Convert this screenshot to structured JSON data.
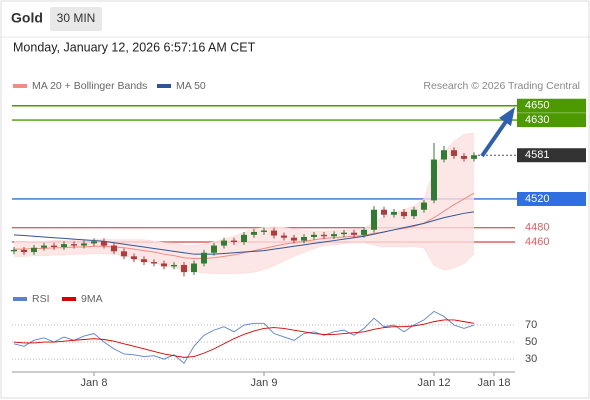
{
  "header": {
    "symbol": "Gold",
    "interval": "30 MIN",
    "datetime": "Monday, January 12, 2026 6:57:16 AM CET",
    "source": "Research © 2026 Trading Central"
  },
  "chart_data": [
    {
      "type": "candlestick",
      "categories": [
        null,
        null,
        null,
        null,
        null,
        null,
        null,
        null,
        "Jan 8",
        null,
        null,
        null,
        null,
        null,
        null,
        null,
        null,
        null,
        null,
        null,
        null,
        null,
        null,
        null,
        null,
        "Jan 9",
        null,
        null,
        null,
        null,
        null,
        null,
        null,
        null,
        null,
        null,
        null,
        null,
        null,
        null,
        null,
        null,
        "Jan 12",
        null,
        null,
        null,
        null,
        null,
        "Jan 18",
        null
      ],
      "open": [
        4447,
        4449,
        4446,
        4452,
        4455,
        4453,
        4457,
        4455,
        4458,
        4461,
        4455,
        4447,
        4440,
        4436,
        4432,
        4430,
        4426,
        4428,
        4418,
        4430,
        4445,
        4455,
        4462,
        4460,
        4470,
        4474,
        4476,
        4469,
        4466,
        4462,
        4467,
        4470,
        4468,
        4471,
        4473,
        4470,
        4477,
        4505,
        4498,
        4502,
        4496,
        4505,
        4518,
        4575,
        4588,
        4580,
        4576,
        null,
        null,
        null
      ],
      "high": [
        4453,
        4453,
        4456,
        4459,
        4459,
        4461,
        4461,
        4462,
        4465,
        4465,
        4459,
        4451,
        4444,
        4440,
        4436,
        4434,
        4432,
        4432,
        4434,
        4449,
        4459,
        4466,
        4466,
        4474,
        4478,
        4480,
        4480,
        4473,
        4470,
        4471,
        4474,
        4474,
        4475,
        4477,
        4477,
        4481,
        4510,
        4509,
        4506,
        4506,
        4509,
        4519,
        4598,
        4594,
        4592,
        4584,
        4585,
        null,
        null,
        null
      ],
      "low": [
        4443,
        4442,
        4442,
        4448,
        4449,
        4449,
        4451,
        4451,
        4454,
        4451,
        4443,
        4436,
        4432,
        4428,
        4426,
        4422,
        4422,
        4412,
        4414,
        4426,
        4441,
        4451,
        4456,
        4456,
        4466,
        4470,
        4465,
        4462,
        4458,
        4458,
        4463,
        4464,
        4464,
        4467,
        4466,
        4466,
        4473,
        4494,
        4494,
        4492,
        4492,
        4501,
        4514,
        4571,
        4576,
        4572,
        4572,
        null,
        null,
        null
      ],
      "close": [
        4449,
        4446,
        4452,
        4455,
        4453,
        4457,
        4455,
        4458,
        4461,
        4455,
        4447,
        4440,
        4436,
        4432,
        4430,
        4426,
        4428,
        4418,
        4430,
        4445,
        4455,
        4462,
        4460,
        4470,
        4474,
        4476,
        4469,
        4466,
        4462,
        4467,
        4470,
        4468,
        4471,
        4473,
        4470,
        4477,
        4505,
        4498,
        4502,
        4496,
        4505,
        4515,
        4575,
        4588,
        4580,
        4576,
        4581,
        null,
        null,
        null
      ],
      "up_color": "#2f7d32",
      "down_color": "#b23a3a",
      "series": [
        {
          "name": "MA 20 + Bollinger Bands",
          "color": "#f28b82",
          "band_color": "#fde0e0",
          "values": [
            4450,
            4450,
            4451,
            4451,
            4452,
            4452,
            4453,
            4453,
            4454,
            4454,
            4453,
            4452,
            4450,
            4448,
            4446,
            4443,
            4441,
            4438,
            4437,
            4437,
            4438,
            4440,
            4442,
            4445,
            4448,
            4451,
            4454,
            4457,
            4459,
            4461,
            4463,
            4465,
            4466,
            4467,
            4468,
            4469,
            4472,
            4474,
            4477,
            4479,
            4482,
            4486,
            4494,
            4503,
            4512,
            4520,
            4528,
            null,
            null,
            null
          ],
          "upper": [
            4460,
            4460,
            4461,
            4461,
            4462,
            4462,
            4463,
            4463,
            4464,
            4464,
            4463,
            4463,
            4463,
            4463,
            4461,
            4459,
            4458,
            4455,
            4455,
            4457,
            4460,
            4464,
            4468,
            4473,
            4478,
            4480,
            4481,
            4480,
            4478,
            4476,
            4475,
            4475,
            4476,
            4476,
            4477,
            4479,
            4488,
            4495,
            4500,
            4505,
            4510,
            4520,
            4560,
            4585,
            4600,
            4610,
            4612,
            null,
            null,
            null
          ],
          "lower": [
            4440,
            4440,
            4441,
            4441,
            4442,
            4442,
            4443,
            4443,
            4444,
            4444,
            4443,
            4441,
            4437,
            4433,
            4431,
            4427,
            4424,
            4421,
            4419,
            4417,
            4416,
            4416,
            4416,
            4417,
            4418,
            4422,
            4427,
            4434,
            4440,
            4446,
            4451,
            4455,
            4456,
            4458,
            4459,
            4459,
            4456,
            4453,
            4454,
            4453,
            4454,
            4452,
            4428,
            4421,
            4424,
            4430,
            4444,
            null,
            null,
            null
          ]
        },
        {
          "name": "MA 50",
          "color": "#2f5597",
          "values": [
            4470,
            4469,
            4468,
            4467,
            4466,
            4465,
            4464,
            4463,
            4462,
            4461,
            4459,
            4457,
            4455,
            4453,
            4451,
            4449,
            4447,
            4445,
            4443,
            4443,
            4443,
            4444,
            4445,
            4446,
            4447,
            4448,
            4450,
            4452,
            4454,
            4456,
            4458,
            4460,
            4462,
            4464,
            4466,
            4468,
            4471,
            4474,
            4477,
            4480,
            4483,
            4486,
            4490,
            4494,
            4497,
            4500,
            4502,
            null,
            null,
            null
          ]
        }
      ],
      "levels": [
        {
          "value": 4650,
          "color": "#4c9a00",
          "style": "box",
          "line": "solid"
        },
        {
          "value": 4630,
          "color": "#4c9a00",
          "style": "box",
          "line": "solid"
        },
        {
          "value": 4581,
          "color": "#333333",
          "style": "box",
          "line": "dotted"
        },
        {
          "value": 4520,
          "color": "#2f6fe0",
          "style": "box",
          "line": "solid"
        },
        {
          "value": 4480,
          "color": "#e06060",
          "style": "text",
          "line": "solid"
        },
        {
          "value": 4460,
          "color": "#e06060",
          "style": "text",
          "line": "solid"
        }
      ],
      "ylim": [
        4407,
        4665
      ]
    },
    {
      "type": "line",
      "series": [
        {
          "name": "RSI",
          "color": "#5b7fd6",
          "values": [
            48,
            45,
            52,
            55,
            50,
            56,
            52,
            57,
            60,
            50,
            42,
            36,
            35,
            33,
            34,
            30,
            35,
            25,
            45,
            58,
            64,
            68,
            62,
            70,
            72,
            72,
            60,
            56,
            52,
            60,
            62,
            58,
            62,
            64,
            58,
            66,
            78,
            68,
            70,
            62,
            70,
            76,
            86,
            80,
            70,
            66,
            70,
            null,
            null,
            null
          ]
        },
        {
          "name": "9MA",
          "color": "#dd0000",
          "values": [
            50,
            49,
            49,
            50,
            50,
            51,
            52,
            53,
            54,
            53,
            51,
            48,
            45,
            42,
            39,
            36,
            34,
            32,
            33,
            37,
            42,
            48,
            54,
            59,
            63,
            66,
            67,
            66,
            64,
            62,
            60,
            59,
            59,
            60,
            61,
            62,
            65,
            67,
            68,
            68,
            69,
            71,
            74,
            76,
            76,
            74,
            72,
            null,
            null,
            null
          ]
        }
      ],
      "ylim": [
        16,
        90
      ],
      "yticks": [
        30,
        50,
        70
      ],
      "grid": true
    }
  ]
}
